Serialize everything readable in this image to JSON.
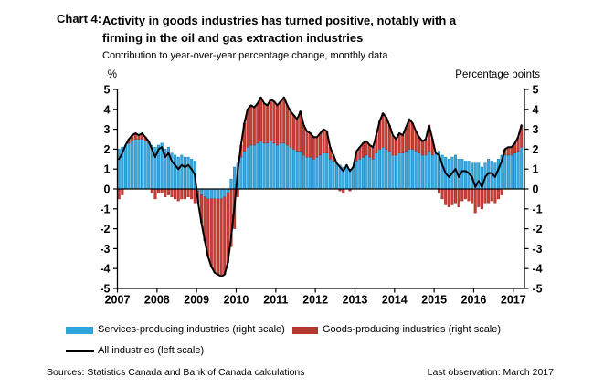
{
  "header": {
    "chart_label": "Chart 4:",
    "title_line1": "Activity in goods industries has turned positive, notably with a",
    "title_line2": "firming in the oil and gas extraction industries",
    "subtitle": "Contribution to year-over-year percentage change, monthly data"
  },
  "axes": {
    "left_unit": "%",
    "right_unit": "Percentage points",
    "y_ticks": [
      "5",
      "4",
      "3",
      "2",
      "1",
      "0",
      "-1",
      "-2",
      "-3",
      "-4",
      "-5"
    ],
    "x_ticks": [
      "2007",
      "2008",
      "2009",
      "2010",
      "2011",
      "2012",
      "2013",
      "2014",
      "2015",
      "2016",
      "2017"
    ]
  },
  "legend": {
    "services": {
      "label": "Services-producing industries (right scale)",
      "color": "#2FA3DC"
    },
    "goods": {
      "label": "Goods-producing industries (right scale)",
      "color": "#B5362C"
    },
    "all": {
      "label": "All industries (left scale)",
      "color": "#000000"
    }
  },
  "footer": {
    "sources": "Sources: Statistics Canada and Bank of Canada calculations",
    "last_observation": "Last observation: March 2017"
  },
  "colors": {
    "services_fill": "#39ABE0",
    "services_stroke": "#0E7EBC",
    "goods_fill": "#CC3D35",
    "goods_stroke": "#9E2620",
    "line": "#000000"
  },
  "chart_data": {
    "type": "bar",
    "subtype": "stacked monthly bars with line overlay",
    "title": "Activity in goods industries has turned positive, notably with a firming in the oil and gas extraction industries",
    "subtitle": "Contribution to year-over-year percentage change, monthly data",
    "x_start": "2007-01",
    "x_end": "2017-03",
    "ylabel_left": "%",
    "ylabel_right": "Percentage points",
    "ylim": [
      -5,
      5
    ],
    "grid": false,
    "legend_position": "below",
    "categories_years": [
      "2007",
      "2008",
      "2009",
      "2010",
      "2011",
      "2012",
      "2013",
      "2014",
      "2015",
      "2016",
      "2017"
    ],
    "series": [
      {
        "name": "Services-producing industries (right scale)",
        "render": "bar",
        "values": [
          2.0,
          2.1,
          2.2,
          2.3,
          2.4,
          2.5,
          2.5,
          2.5,
          2.4,
          2.3,
          2.2,
          2.1,
          2.2,
          2.3,
          2.0,
          2.1,
          1.8,
          1.7,
          1.6,
          1.7,
          1.6,
          1.6,
          1.5,
          1.4,
          -0.1,
          -0.3,
          -0.4,
          -0.5,
          -0.5,
          -0.5,
          -0.5,
          -0.5,
          -0.4,
          -0.2,
          0.5,
          1.1,
          1.3,
          1.6,
          1.9,
          2.1,
          2.2,
          2.2,
          2.3,
          2.4,
          2.3,
          2.3,
          2.4,
          2.3,
          2.2,
          2.3,
          2.3,
          2.2,
          2.1,
          2.0,
          1.9,
          1.9,
          1.7,
          1.6,
          1.6,
          1.5,
          1.6,
          1.7,
          1.8,
          1.8,
          1.5,
          1.4,
          1.3,
          1.2,
          1.1,
          1.2,
          1.0,
          1.1,
          1.4,
          1.5,
          1.6,
          1.7,
          1.6,
          1.5,
          1.8,
          2.0,
          2.1,
          2.0,
          1.9,
          1.7,
          1.7,
          1.8,
          1.8,
          1.9,
          2.0,
          2.0,
          1.9,
          1.8,
          1.7,
          1.7,
          1.9,
          1.7,
          1.8,
          1.9,
          1.7,
          1.6,
          1.5,
          1.6,
          1.7,
          1.5,
          1.5,
          1.4,
          1.4,
          1.3,
          1.3,
          1.3,
          1.1,
          1.3,
          1.5,
          1.4,
          1.3,
          1.5,
          1.7,
          1.7,
          1.7,
          1.7,
          1.8,
          1.9,
          2.1
        ]
      },
      {
        "name": "Goods-producing industries (right scale)",
        "render": "bar",
        "values": [
          -0.5,
          -0.3,
          0.0,
          0.2,
          0.3,
          0.3,
          0.2,
          0.3,
          0.2,
          0.1,
          -0.2,
          -0.5,
          -0.2,
          -0.2,
          -0.4,
          -0.3,
          -0.4,
          -0.5,
          -0.6,
          -0.5,
          -0.5,
          -0.4,
          -0.5,
          -0.7,
          -0.6,
          -1.4,
          -2.2,
          -2.9,
          -3.4,
          -3.7,
          -3.8,
          -3.9,
          -3.9,
          -3.5,
          -2.9,
          -2.0,
          -0.4,
          0.6,
          1.4,
          1.9,
          2.0,
          1.9,
          2.0,
          2.2,
          2.0,
          1.9,
          2.1,
          2.1,
          2.0,
          2.1,
          2.3,
          2.0,
          1.8,
          1.7,
          1.6,
          2.0,
          1.5,
          1.3,
          1.2,
          1.1,
          1.0,
          1.1,
          1.2,
          1.1,
          0.6,
          0.3,
          0.0,
          -0.1,
          -0.2,
          0.0,
          -0.1,
          0.0,
          0.5,
          0.6,
          0.7,
          0.7,
          0.6,
          0.6,
          0.9,
          1.4,
          1.7,
          1.6,
          1.3,
          1.0,
          0.8,
          1.0,
          0.9,
          1.2,
          1.5,
          1.3,
          1.0,
          0.8,
          0.7,
          0.8,
          1.3,
          0.8,
          0.0,
          -0.2,
          -0.5,
          -0.8,
          -0.9,
          -0.8,
          -0.7,
          -0.9,
          -0.6,
          -0.5,
          -0.6,
          -0.7,
          -1.2,
          -0.9,
          -1.0,
          -0.7,
          -0.7,
          -0.6,
          -0.7,
          -0.5,
          -0.3,
          0.3,
          0.4,
          0.4,
          0.5,
          0.7,
          1.1
        ]
      },
      {
        "name": "All industries (left scale)",
        "render": "line",
        "values": [
          1.5,
          1.8,
          2.2,
          2.5,
          2.7,
          2.8,
          2.7,
          2.8,
          2.6,
          2.4,
          2.0,
          1.6,
          2.0,
          2.1,
          1.6,
          1.8,
          1.4,
          1.2,
          1.0,
          1.2,
          1.1,
          1.2,
          1.0,
          0.7,
          -0.7,
          -1.7,
          -2.6,
          -3.4,
          -3.9,
          -4.2,
          -4.3,
          -4.4,
          -4.3,
          -3.7,
          -2.4,
          -0.9,
          0.9,
          2.2,
          3.3,
          4.0,
          4.2,
          4.1,
          4.3,
          4.6,
          4.3,
          4.2,
          4.5,
          4.4,
          4.2,
          4.4,
          4.6,
          4.2,
          3.9,
          3.7,
          3.5,
          3.9,
          3.2,
          2.9,
          2.8,
          2.6,
          2.6,
          2.8,
          3.0,
          2.9,
          2.1,
          1.7,
          1.3,
          1.1,
          0.9,
          1.2,
          0.9,
          1.1,
          1.9,
          2.1,
          2.3,
          2.4,
          2.2,
          2.1,
          2.7,
          3.4,
          3.8,
          3.6,
          3.2,
          2.7,
          2.5,
          2.8,
          2.7,
          3.1,
          3.5,
          3.3,
          2.9,
          2.6,
          2.4,
          2.5,
          3.2,
          2.5,
          1.8,
          1.7,
          1.2,
          0.8,
          0.6,
          0.8,
          1.0,
          0.6,
          0.9,
          0.9,
          0.8,
          0.6,
          0.1,
          0.4,
          0.1,
          0.6,
          0.8,
          0.8,
          0.6,
          1.0,
          1.4,
          2.0,
          2.1,
          2.1,
          2.3,
          2.6,
          3.2
        ]
      }
    ]
  }
}
